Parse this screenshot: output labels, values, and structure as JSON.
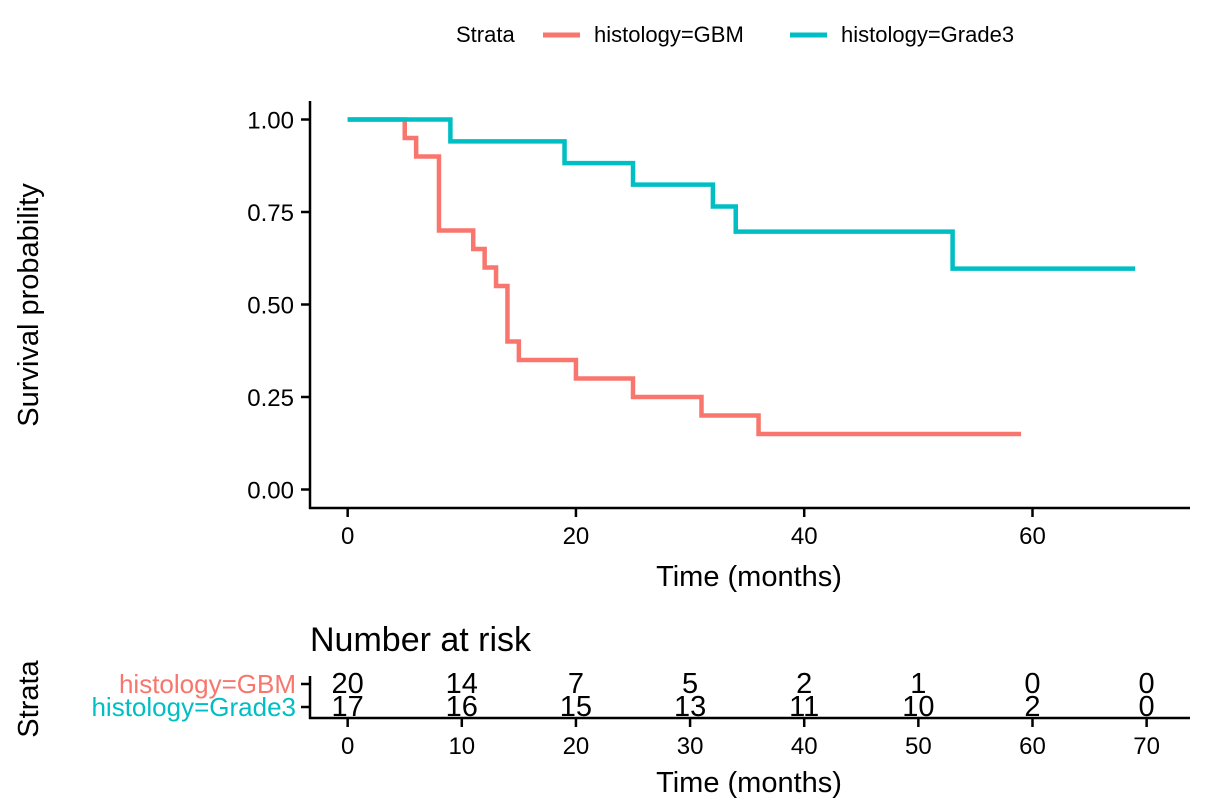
{
  "chart_data": [
    {
      "type": "line",
      "subtype": "step",
      "title": "",
      "xlabel": "Time (months)",
      "ylabel": "Survival probability",
      "xlim": [
        -3.3,
        73.8
      ],
      "ylim": [
        -0.05,
        1.05
      ],
      "xticks": [
        0,
        20,
        40,
        60
      ],
      "yticks": [
        0,
        0.25,
        0.5,
        0.75,
        1.0
      ],
      "ytick_labels": [
        "0.00",
        "0.25",
        "0.50",
        "0.75",
        "1.00"
      ],
      "grid": false,
      "legend": {
        "title": "Strata",
        "position": "top",
        "items": [
          "histology=GBM",
          "histology=Grade3"
        ]
      },
      "series": [
        {
          "name": "histology=GBM",
          "color": "#F8766D",
          "x": [
            0,
            5,
            5.5,
            6,
            8,
            11,
            12,
            13,
            14,
            15,
            20,
            25,
            31,
            36,
            59
          ],
          "y": [
            1.0,
            0.95,
            0.95,
            0.9,
            0.7,
            0.65,
            0.6,
            0.55,
            0.4,
            0.35,
            0.3,
            0.25,
            0.2,
            0.15,
            0.15
          ]
        },
        {
          "name": "histology=Grade3",
          "color": "#00BFC4",
          "x": [
            0,
            9,
            19,
            25,
            32,
            34,
            53,
            69
          ],
          "y": [
            1.0,
            0.941,
            0.882,
            0.824,
            0.765,
            0.697,
            0.597,
            0.597
          ]
        }
      ]
    },
    {
      "type": "table",
      "title": "Number at risk",
      "xlabel": "Time (months)",
      "ylabel": "Strata",
      "xlim": [
        -3.3,
        73.8
      ],
      "x": [
        0,
        10,
        20,
        30,
        40,
        50,
        60,
        70
      ],
      "rows": [
        {
          "name": "histology=GBM",
          "color": "#F8766D",
          "values": [
            20,
            14,
            7,
            5,
            2,
            1,
            0,
            0
          ]
        },
        {
          "name": "histology=Grade3",
          "color": "#00BFC4",
          "values": [
            17,
            16,
            15,
            13,
            11,
            10,
            2,
            0
          ]
        }
      ]
    }
  ]
}
